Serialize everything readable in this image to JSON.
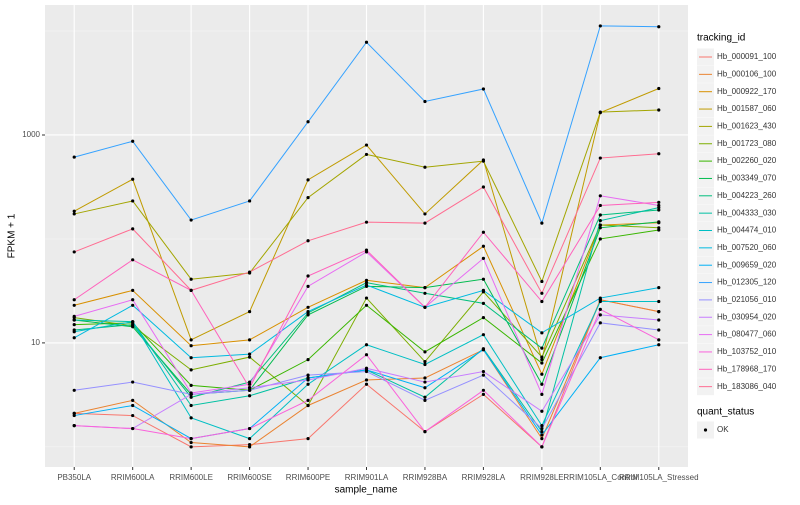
{
  "chart_data": {
    "type": "line",
    "y_label": "FPKM + 1",
    "x_label": "sample_name",
    "log_y": true,
    "grid": true,
    "ylim": [
      0.64,
      17800
    ],
    "yticks": [
      10,
      1000
    ],
    "minor_yticks": [
      1,
      100,
      10000
    ],
    "legend_title": "tracking_id",
    "point_legend_title": "quant_status",
    "point_legend_label": "OK",
    "point_color": "#000000",
    "categories": [
      "PB350LA",
      "RRIM600LA",
      "RRIM600LE",
      "RRIM600SE",
      "RRIM600PE",
      "RRIM901LA",
      "RRIM928BA",
      "RRIM928LA",
      "RRIM928LE",
      "RRIM105LA_Control",
      "RRIM105LA_Stressed"
    ],
    "series": [
      {
        "name": "Hb_000091_100",
        "color": "#F8766D",
        "values": [
          2.1,
          2.0,
          1.0,
          1.05,
          1.2,
          4.0,
          1.4,
          3.2,
          1.0,
          26,
          20
        ]
      },
      {
        "name": "Hb_000106_100",
        "color": "#EA8331",
        "values": [
          2.1,
          2.8,
          1.1,
          1.0,
          2.5,
          4.4,
          4.6,
          8.6,
          1.2,
          26,
          20
        ]
      },
      {
        "name": "Hb_000922_170",
        "color": "#D89000",
        "values": [
          23,
          32,
          9.4,
          10.7,
          22,
          40,
          34,
          85,
          5,
          136,
          143
        ]
      },
      {
        "name": "Hb_001587_060",
        "color": "#C09B00",
        "values": [
          185,
          375,
          10.7,
          20,
          370,
          800,
          174,
          575,
          6.9,
          1640,
          2800
        ]
      },
      {
        "name": "Hb_001623_430",
        "color": "#A3A500",
        "values": [
          174,
          232,
          41,
          47,
          250,
          650,
          490,
          560,
          39,
          1660,
          1740
        ]
      },
      {
        "name": "Hb_001723_080",
        "color": "#7CAE00",
        "values": [
          17.5,
          14.6,
          5.5,
          7.3,
          2.5,
          27,
          6.6,
          31,
          7.3,
          136,
          128
        ]
      },
      {
        "name": "Hb_002260_020",
        "color": "#39B600",
        "values": [
          15,
          15.6,
          3.9,
          3.5,
          6.9,
          23,
          8.2,
          17.5,
          6.4,
          100,
          122
        ]
      },
      {
        "name": "Hb_003349_070",
        "color": "#00BB4E",
        "values": [
          16.6,
          14.3,
          3.2,
          3.5,
          18.6,
          35,
          34,
          41,
          4.0,
          128,
          146
        ]
      },
      {
        "name": "Hb_004223_260",
        "color": "#00BF7D",
        "values": [
          13.3,
          15,
          3.0,
          4.2,
          19.4,
          38,
          30,
          24,
          8.9,
          170,
          190
        ]
      },
      {
        "name": "Hb_004333_030",
        "color": "#00C1A3",
        "values": [
          16.6,
          16,
          2.5,
          3.1,
          4.6,
          5.5,
          3.0,
          8.8,
          1.4,
          150,
          200
        ]
      },
      {
        "name": "Hb_004474_010",
        "color": "#00BFC4",
        "values": [
          12.8,
          16,
          1.9,
          1.2,
          4.0,
          9.6,
          6.2,
          12,
          1.6,
          25,
          25
        ]
      },
      {
        "name": "Hb_007520_060",
        "color": "#00BAE0",
        "values": [
          11.2,
          23,
          7.2,
          7.8,
          20,
          36,
          22,
          32,
          12.5,
          27,
          34
        ]
      },
      {
        "name": "Hb_009659_020",
        "color": "#00B0F6",
        "values": [
          2.0,
          2.5,
          1.2,
          1.5,
          4.6,
          5.5,
          3.7,
          8.6,
          1.3,
          7.2,
          9.6
        ]
      },
      {
        "name": "Hb_012305_120",
        "color": "#35A2FF",
        "values": [
          613,
          870,
          152,
          232,
          1340,
          7800,
          2100,
          2770,
          142,
          11200,
          11000
        ]
      },
      {
        "name": "Hb_021056_010",
        "color": "#9590FF",
        "values": [
          3.5,
          4.2,
          3.2,
          3.5,
          4.9,
          5.3,
          2.8,
          4.9,
          1.5,
          15.6,
          13.3
        ]
      },
      {
        "name": "Hb_030954_020",
        "color": "#C77CFF",
        "values": [
          1.6,
          1.5,
          3.2,
          3.7,
          4.4,
          5.7,
          4.2,
          5.3,
          2.2,
          18.6,
          16.6
        ]
      },
      {
        "name": "Hb_080477_060",
        "color": "#E76BF3",
        "values": [
          18,
          26,
          3.3,
          4.0,
          35,
          75,
          22,
          65,
          3.2,
          260,
          210
        ]
      },
      {
        "name": "Hb_103752_010",
        "color": "#FA62DB",
        "values": [
          1.6,
          1.5,
          1.2,
          1.5,
          2.8,
          7.7,
          1.4,
          3.5,
          1.0,
          21,
          10.7
        ]
      },
      {
        "name": "Hb_178968_170",
        "color": "#FF62BC",
        "values": [
          26,
          63,
          32,
          3.7,
          44,
          78,
          22,
          116,
          25,
          210,
          225
        ]
      },
      {
        "name": "Hb_183086_040",
        "color": "#FF6C91",
        "values": [
          75,
          125,
          32,
          48,
          96,
          145,
          142,
          316,
          30,
          600,
          660
        ]
      }
    ]
  }
}
